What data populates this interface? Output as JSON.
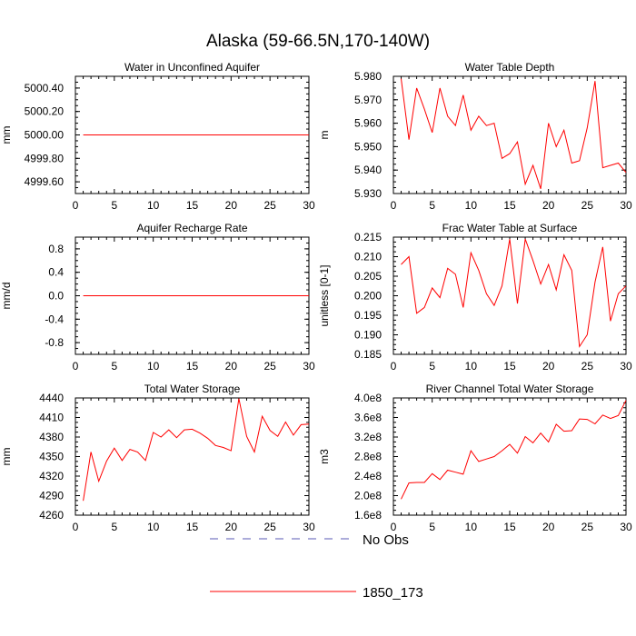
{
  "title": "Alaska (59-66.5N,170-140W)",
  "colors": {
    "series": "#ff0000",
    "obs": "#5a5ab4",
    "axis": "#000000"
  },
  "legend": [
    {
      "label": "No Obs",
      "style": "dashed",
      "color": "#5a5ab4"
    },
    {
      "label": "1850_173",
      "style": "solid",
      "color": "#ff0000"
    }
  ],
  "chart_data": [
    {
      "type": "line",
      "title": "Water in Unconfined Aquifer",
      "ylabel": "mm",
      "xlim": [
        0,
        30
      ],
      "ylim": [
        4999.5,
        5000.5
      ],
      "xticks": [
        "0",
        "5",
        "10",
        "15",
        "20",
        "25",
        "30"
      ],
      "yticks": [
        {
          "v": 4999.6,
          "label": "4999.60"
        },
        {
          "v": 4999.8,
          "label": "4999.80"
        },
        {
          "v": 5000.0,
          "label": "5000.00"
        },
        {
          "v": 5000.2,
          "label": "5000.20"
        },
        {
          "v": 5000.4,
          "label": "5000.40"
        }
      ],
      "series": [
        {
          "x": [
            1,
            2,
            3,
            4,
            5,
            6,
            7,
            8,
            9,
            10,
            11,
            12,
            13,
            14,
            15,
            16,
            17,
            18,
            19,
            20,
            21,
            22,
            23,
            24,
            25,
            26,
            27,
            28,
            29,
            30
          ],
          "values": [
            5000,
            5000,
            5000,
            5000,
            5000,
            5000,
            5000,
            5000,
            5000,
            5000,
            5000,
            5000,
            5000,
            5000,
            5000,
            5000,
            5000,
            5000,
            5000,
            5000,
            5000,
            5000,
            5000,
            5000,
            5000,
            5000,
            5000,
            5000,
            5000,
            5000
          ]
        }
      ]
    },
    {
      "type": "line",
      "title": "Water Table Depth",
      "ylabel": "m",
      "xlim": [
        0,
        30
      ],
      "ylim": [
        5.93,
        5.98
      ],
      "xticks": [
        "0",
        "5",
        "10",
        "15",
        "20",
        "25",
        "30"
      ],
      "yticks": [
        {
          "v": 5.93,
          "label": "5.930"
        },
        {
          "v": 5.94,
          "label": "5.940"
        },
        {
          "v": 5.95,
          "label": "5.950"
        },
        {
          "v": 5.96,
          "label": "5.960"
        },
        {
          "v": 5.97,
          "label": "5.970"
        },
        {
          "v": 5.98,
          "label": "5.980"
        }
      ],
      "series": [
        {
          "x": [
            1,
            2,
            3,
            4,
            5,
            6,
            7,
            8,
            9,
            10,
            11,
            12,
            13,
            14,
            15,
            16,
            17,
            18,
            19,
            20,
            21,
            22,
            23,
            24,
            25,
            26,
            27,
            28,
            29,
            30
          ],
          "values": [
            5.979,
            5.953,
            5.975,
            5.966,
            5.956,
            5.975,
            5.963,
            5.959,
            5.972,
            5.957,
            5.963,
            5.959,
            5.96,
            5.945,
            5.947,
            5.952,
            5.934,
            5.942,
            5.932,
            5.96,
            5.95,
            5.957,
            5.943,
            5.944,
            5.958,
            5.978,
            5.941,
            5.942,
            5.943,
            5.939
          ]
        }
      ]
    },
    {
      "type": "line",
      "title": "Aquifer Recharge Rate",
      "ylabel": "mm/d",
      "xlim": [
        0,
        30
      ],
      "ylim": [
        -1.0,
        1.0
      ],
      "xticks": [
        "0",
        "5",
        "10",
        "15",
        "20",
        "25",
        "30"
      ],
      "yticks": [
        {
          "v": -0.8,
          "label": "-0.8"
        },
        {
          "v": -0.4,
          "label": "-0.4"
        },
        {
          "v": 0.0,
          "label": "0.0"
        },
        {
          "v": 0.4,
          "label": "0.4"
        },
        {
          "v": 0.8,
          "label": "0.8"
        }
      ],
      "series": [
        {
          "x": [
            1,
            2,
            3,
            4,
            5,
            6,
            7,
            8,
            9,
            10,
            11,
            12,
            13,
            14,
            15,
            16,
            17,
            18,
            19,
            20,
            21,
            22,
            23,
            24,
            25,
            26,
            27,
            28,
            29,
            30
          ],
          "values": [
            0,
            0,
            0,
            0,
            0,
            0,
            0,
            0,
            0,
            0,
            0,
            0,
            0,
            0,
            0,
            0,
            0,
            0,
            0,
            0,
            0,
            0,
            0,
            0,
            0,
            0,
            0,
            0,
            0,
            0
          ]
        }
      ]
    },
    {
      "type": "line",
      "title": "Frac Water Table at Surface",
      "ylabel": "unitless [0-1]",
      "xlim": [
        0,
        30
      ],
      "ylim": [
        0.185,
        0.215
      ],
      "xticks": [
        "0",
        "5",
        "10",
        "15",
        "20",
        "25",
        "30"
      ],
      "yticks": [
        {
          "v": 0.185,
          "label": "0.185"
        },
        {
          "v": 0.19,
          "label": "0.190"
        },
        {
          "v": 0.195,
          "label": "0.195"
        },
        {
          "v": 0.2,
          "label": "0.200"
        },
        {
          "v": 0.205,
          "label": "0.205"
        },
        {
          "v": 0.21,
          "label": "0.210"
        },
        {
          "v": 0.215,
          "label": "0.215"
        }
      ],
      "series": [
        {
          "x": [
            1,
            2,
            3,
            4,
            5,
            6,
            7,
            8,
            9,
            10,
            11,
            12,
            13,
            14,
            15,
            16,
            17,
            18,
            19,
            20,
            21,
            22,
            23,
            24,
            25,
            26,
            27,
            28,
            29,
            30
          ],
          "values": [
            0.208,
            0.21,
            0.1955,
            0.197,
            0.202,
            0.1995,
            0.207,
            0.2055,
            0.197,
            0.211,
            0.2065,
            0.2005,
            0.1975,
            0.2025,
            0.2145,
            0.198,
            0.2145,
            0.209,
            0.203,
            0.208,
            0.2015,
            0.2105,
            0.2065,
            0.187,
            0.19,
            0.2035,
            0.2125,
            0.1935,
            0.2005,
            0.2025
          ]
        }
      ]
    },
    {
      "type": "line",
      "title": "Total Water Storage",
      "ylabel": "mm",
      "xlim": [
        0,
        30
      ],
      "ylim": [
        4260,
        4440
      ],
      "xticks": [
        "0",
        "5",
        "10",
        "15",
        "20",
        "25",
        "30"
      ],
      "yticks": [
        {
          "v": 4260,
          "label": "4260"
        },
        {
          "v": 4290,
          "label": "4290"
        },
        {
          "v": 4320,
          "label": "4320"
        },
        {
          "v": 4350,
          "label": "4350"
        },
        {
          "v": 4380,
          "label": "4380"
        },
        {
          "v": 4410,
          "label": "4410"
        },
        {
          "v": 4440,
          "label": "4440"
        }
      ],
      "series": [
        {
          "x": [
            1,
            2,
            3,
            4,
            5,
            6,
            7,
            8,
            9,
            10,
            11,
            12,
            13,
            14,
            15,
            16,
            17,
            18,
            19,
            20,
            21,
            22,
            23,
            24,
            25,
            26,
            27,
            28,
            29,
            30
          ],
          "values": [
            4282,
            4357,
            4312,
            4343,
            4363,
            4344,
            4361,
            4357,
            4344,
            4387,
            4380,
            4391,
            4379,
            4391,
            4392,
            4386,
            4378,
            4367,
            4364,
            4359,
            4439,
            4381,
            4357,
            4412,
            4390,
            4381,
            4403,
            4383,
            4399,
            4400
          ]
        }
      ]
    },
    {
      "type": "line",
      "title": "River Channel Total Water Storage",
      "ylabel": "m3",
      "xlim": [
        0,
        30
      ],
      "ylim": [
        160000000.0,
        400000000.0
      ],
      "xticks": [
        "0",
        "5",
        "10",
        "15",
        "20",
        "25",
        "30"
      ],
      "yticks": [
        {
          "v": 160000000.0,
          "label": "1.6e8"
        },
        {
          "v": 200000000.0,
          "label": "2.0e8"
        },
        {
          "v": 240000000.0,
          "label": "2.4e8"
        },
        {
          "v": 280000000.0,
          "label": "2.8e8"
        },
        {
          "v": 320000000.0,
          "label": "3.2e8"
        },
        {
          "v": 360000000.0,
          "label": "3.6e8"
        },
        {
          "v": 400000000.0,
          "label": "4.0e8"
        }
      ],
      "series": [
        {
          "x": [
            1,
            2,
            3,
            4,
            5,
            6,
            7,
            8,
            9,
            10,
            11,
            12,
            13,
            14,
            15,
            16,
            17,
            18,
            19,
            20,
            21,
            22,
            23,
            24,
            25,
            26,
            27,
            28,
            29,
            30
          ],
          "values": [
            193000000.0,
            226000000.0,
            227000000.0,
            227000000.0,
            245000000.0,
            233000000.0,
            252000000.0,
            248000000.0,
            244000000.0,
            292000000.0,
            270000000.0,
            275000000.0,
            280000000.0,
            292000000.0,
            305000000.0,
            287000000.0,
            321000000.0,
            308000000.0,
            328000000.0,
            310000000.0,
            346000000.0,
            332000000.0,
            333000000.0,
            357000000.0,
            356000000.0,
            347000000.0,
            365000000.0,
            358000000.0,
            364000000.0,
            395000000.0
          ]
        }
      ]
    }
  ]
}
